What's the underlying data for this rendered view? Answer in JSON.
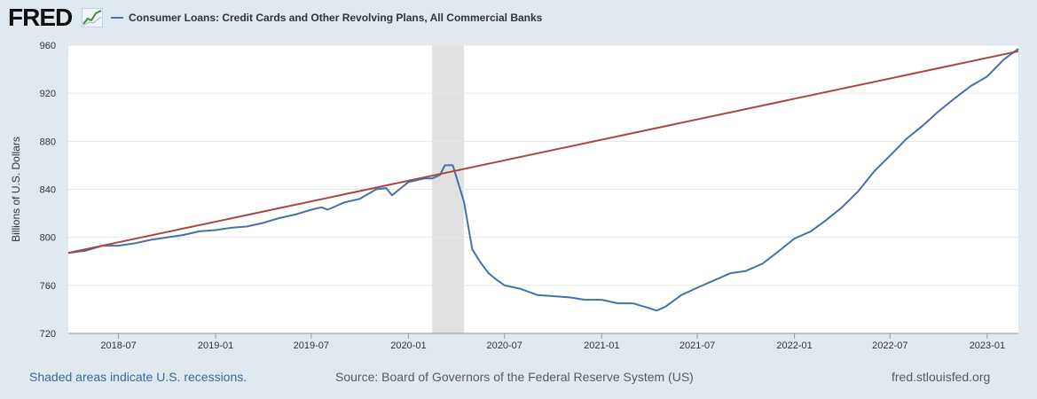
{
  "header": {
    "logo_text": "FRED",
    "logo_icon": "trend-graph-icon",
    "legend_label": "Consumer Loans: Credit Cards and Other Revolving Plans, All Commercial Banks"
  },
  "footer": {
    "note": "Shaded areas indicate U.S. recessions.",
    "source": "Source: Board of Governors of the Federal Reserve System (US)",
    "url": "fred.stlouisfed.org"
  },
  "colors": {
    "series": "#4572a7",
    "trend": "#aa4643",
    "recession": "#e1e1e1",
    "grid": "#e6e6e6",
    "background": "#e1e9f0"
  },
  "chart_data": {
    "type": "line",
    "title": "",
    "ylabel": "Billions of U.S. Dollars",
    "xlabel": "",
    "ylim": [
      720,
      960
    ],
    "xlim": [
      "2018-03-28",
      "2023-03-01"
    ],
    "grid": true,
    "y_ticks": [
      720,
      760,
      800,
      840,
      880,
      920,
      960
    ],
    "x_ticks": [
      "2018-07",
      "2019-01",
      "2019-07",
      "2020-01",
      "2020-07",
      "2021-01",
      "2021-07",
      "2022-01",
      "2022-07",
      "2023-01"
    ],
    "recessions": [
      {
        "start": "2020-02-15",
        "end": "2020-04-15"
      }
    ],
    "series": [
      {
        "name": "Consumer Loans: Credit Cards and Other Revolving Plans, All Commercial Banks",
        "color": "#4572a7",
        "points": [
          [
            "2018-03-28",
            787
          ],
          [
            "2018-05-01",
            789
          ],
          [
            "2018-06-01",
            793
          ],
          [
            "2018-07-01",
            793
          ],
          [
            "2018-08-01",
            795
          ],
          [
            "2018-09-01",
            798
          ],
          [
            "2018-10-01",
            800
          ],
          [
            "2018-11-01",
            802
          ],
          [
            "2018-12-01",
            805
          ],
          [
            "2019-01-01",
            806
          ],
          [
            "2019-02-01",
            808
          ],
          [
            "2019-03-01",
            809
          ],
          [
            "2019-04-01",
            812
          ],
          [
            "2019-05-01",
            816
          ],
          [
            "2019-06-01",
            819
          ],
          [
            "2019-07-01",
            823
          ],
          [
            "2019-07-20",
            825
          ],
          [
            "2019-08-01",
            823
          ],
          [
            "2019-09-01",
            829
          ],
          [
            "2019-10-01",
            832
          ],
          [
            "2019-11-01",
            840
          ],
          [
            "2019-11-20",
            841
          ],
          [
            "2019-12-01",
            835
          ],
          [
            "2019-12-15",
            840
          ],
          [
            "2020-01-01",
            846
          ],
          [
            "2020-01-20",
            848
          ],
          [
            "2020-02-01",
            849
          ],
          [
            "2020-02-15",
            849
          ],
          [
            "2020-03-01",
            852
          ],
          [
            "2020-03-10",
            860
          ],
          [
            "2020-03-25",
            860
          ],
          [
            "2020-04-15",
            830
          ],
          [
            "2020-05-01",
            790
          ],
          [
            "2020-05-15",
            780
          ],
          [
            "2020-06-01",
            770
          ],
          [
            "2020-06-15",
            765
          ],
          [
            "2020-07-01",
            760
          ],
          [
            "2020-08-01",
            757
          ],
          [
            "2020-09-01",
            752
          ],
          [
            "2020-10-01",
            751
          ],
          [
            "2020-11-01",
            750
          ],
          [
            "2020-12-01",
            748
          ],
          [
            "2021-01-01",
            748
          ],
          [
            "2021-02-01",
            745
          ],
          [
            "2021-03-01",
            745
          ],
          [
            "2021-04-01",
            741
          ],
          [
            "2021-04-15",
            739
          ],
          [
            "2021-05-01",
            742
          ],
          [
            "2021-06-01",
            752
          ],
          [
            "2021-07-01",
            758
          ],
          [
            "2021-08-01",
            764
          ],
          [
            "2021-09-01",
            770
          ],
          [
            "2021-10-01",
            772
          ],
          [
            "2021-11-01",
            778
          ],
          [
            "2021-12-01",
            788
          ],
          [
            "2022-01-01",
            799
          ],
          [
            "2022-02-01",
            805
          ],
          [
            "2022-03-01",
            814
          ],
          [
            "2022-04-01",
            825
          ],
          [
            "2022-05-01",
            838
          ],
          [
            "2022-06-01",
            855
          ],
          [
            "2022-07-01",
            868
          ],
          [
            "2022-08-01",
            882
          ],
          [
            "2022-09-01",
            893
          ],
          [
            "2022-10-01",
            905
          ],
          [
            "2022-11-01",
            916
          ],
          [
            "2022-12-01",
            926
          ],
          [
            "2023-01-01",
            934
          ],
          [
            "2023-02-01",
            948
          ],
          [
            "2023-03-01",
            957
          ]
        ]
      },
      {
        "name": "",
        "color": "#aa4643",
        "points": [
          [
            "2018-03-28",
            787
          ],
          [
            "2023-03-01",
            955
          ]
        ]
      }
    ]
  }
}
